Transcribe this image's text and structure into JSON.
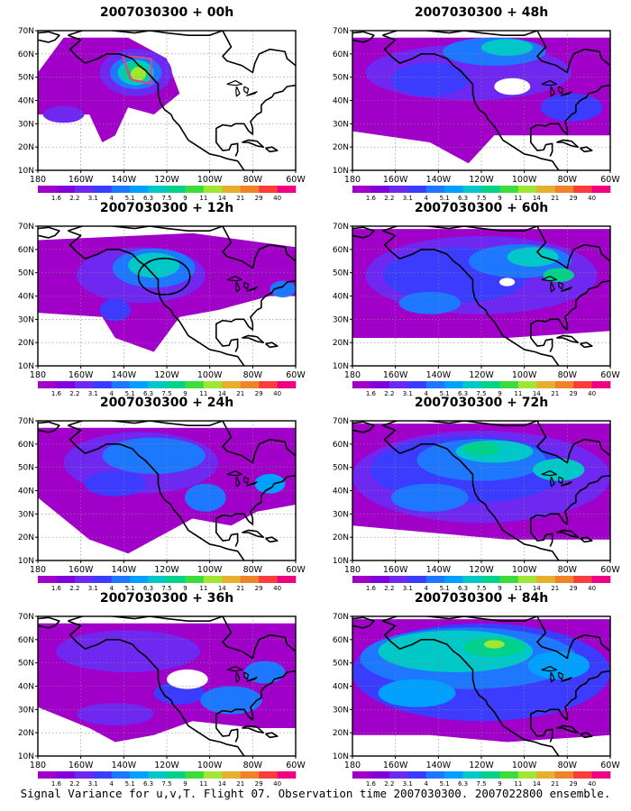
{
  "panels": [
    {
      "title": "2007030300 + 00h",
      "lead": "00h"
    },
    {
      "title": "2007030300 + 48h",
      "lead": "48h"
    },
    {
      "title": "2007030300 + 12h",
      "lead": "12h"
    },
    {
      "title": "2007030300 + 60h",
      "lead": "60h"
    },
    {
      "title": "2007030300 + 24h",
      "lead": "24h"
    },
    {
      "title": "2007030300 + 72h",
      "lead": "72h"
    },
    {
      "title": "2007030300 + 36h",
      "lead": "36h"
    },
    {
      "title": "2007030300 + 84h",
      "lead": "84h"
    }
  ],
  "axes": {
    "lat_labels": [
      "10N",
      "20N",
      "30N",
      "40N",
      "50N",
      "60N",
      "70N"
    ],
    "lon_labels": [
      "180",
      "160W",
      "140W",
      "120W",
      "100W",
      "80W",
      "60W"
    ]
  },
  "colorbar": {
    "labels": [
      "1.6",
      "2.2",
      "3.1",
      "4",
      "5.1",
      "6.3",
      "7.5",
      "9",
      "11",
      "14",
      "21",
      "29",
      "40"
    ],
    "colors": [
      "#a000c8",
      "#8200dc",
      "#6e28f0",
      "#3c3cff",
      "#1e78ff",
      "#00a0ff",
      "#00c8c8",
      "#00d28c",
      "#3cdc3c",
      "#a0e632",
      "#e6af2d",
      "#f0822a",
      "#fa3c3c",
      "#f00082"
    ]
  },
  "caption": "Signal Variance for u,v,T. Flight 07. Observation time 2007030300. 2007022800 ensemble."
}
